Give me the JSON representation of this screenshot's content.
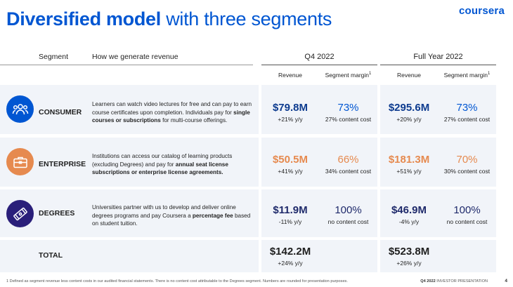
{
  "title": {
    "bold": "Diversified model",
    "light": "with three segments"
  },
  "logo": "coursera",
  "headers": {
    "segment": "Segment",
    "how": "How we generate revenue",
    "q4": "Q4 2022",
    "fy": "Full Year 2022",
    "revenue": "Revenue",
    "margin": "Segment margin",
    "margin_note": "1"
  },
  "rows": {
    "consumer": {
      "label": "CONSUMER",
      "desc_1": "Learners can watch video lectures for free and can pay to earn course certificates upon completion. Individuals pay for ",
      "desc_bold": "single courses or subscriptions",
      "desc_2": " for multi-course offerings.",
      "q4_rev": "$79.8M",
      "q4_rev_growth": "+21% y/y",
      "q4_margin": "73%",
      "q4_margin_note": "27% content cost",
      "fy_rev": "$295.6M",
      "fy_rev_growth": "+20% y/y",
      "fy_margin": "73%",
      "fy_margin_note": "27% content cost"
    },
    "enterprise": {
      "label": "ENTERPRISE",
      "desc_1": "Institutions can access our catalog of learning products (excluding Degrees) and pay for ",
      "desc_bold": "annual seat license subscriptions or enterprise license agreements.",
      "desc_2": "",
      "q4_rev": "$50.5M",
      "q4_rev_growth": "+41% y/y",
      "q4_margin": "66%",
      "q4_margin_note": "34% content cost",
      "fy_rev": "$181.3M",
      "fy_rev_growth": "+51% y/y",
      "fy_margin": "70%",
      "fy_margin_note": "30% content cost"
    },
    "degrees": {
      "label": "DEGREES",
      "desc_1": "Universities partner with us to develop and deliver online degrees programs and pay Coursera a ",
      "desc_bold": "percentage fee",
      "desc_2": " based on student tuition.",
      "q4_rev": "$11.9M",
      "q4_rev_growth": "-11% y/y",
      "q4_margin": "100%",
      "q4_margin_note": "no content cost",
      "fy_rev": "$46.9M",
      "fy_rev_growth": "-4% y/y",
      "fy_margin": "100%",
      "fy_margin_note": "no content cost"
    },
    "total": {
      "label": "TOTAL",
      "q4_rev": "$142.2M",
      "q4_rev_growth": "+24% y/y",
      "fy_rev": "$523.8M",
      "fy_rev_growth": "+26% y/y"
    }
  },
  "icons": {
    "consumer": "people-group-icon",
    "enterprise": "briefcase-icon",
    "degrees": "diploma-icon"
  },
  "colors": {
    "consumer": "#0056d2",
    "enterprise": "#e68a4f",
    "degrees": "#2a1f7a",
    "title": "#0056d2"
  },
  "footer": {
    "note": "1 Defined as segment revenue less content costs in our audited financial statements. There is no content cost attributable to the Degrees segment. Numbers are rounded for presentation purposes.",
    "period": "Q4 2022",
    "deck": "INVESTOR PRESENTATION",
    "page": "4"
  }
}
